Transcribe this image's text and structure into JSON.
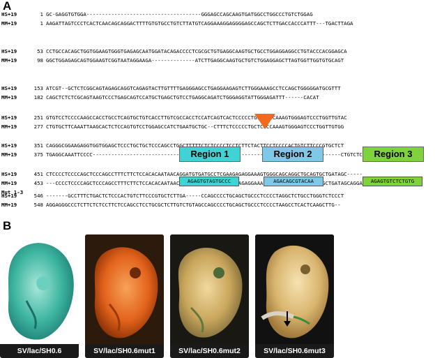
{
  "panel_a": {
    "label": "A",
    "rows": [
      {
        "species": "HS+19",
        "num": "1",
        "seq": "GC-GAGGTGTGGA-------------------------------------GGGAGCCAGCAAGTGATGGCCTGGCCCTGTCTGGAG"
      },
      {
        "species": "MM+19",
        "num": "1",
        "seq": "AAGATTAGTCCCTCACTCAACAGCAGGACTTTTGTGTGCCTGTCTTATGTCAGGAAAGGAGGGGAGCCAGCTCTTGACCACCCATTT---TGACTTAGA"
      },
      {
        "species": "HS+19",
        "num": "53",
        "seq": "CCTGCCACAGCTGGTGGAAGTGGGTGAGAGCAATGGATACAGACCCCTCGCGCTGTGAGGCAAGTGCTGCCTGGAGGAGGCCTGTACCCACGGAGCA"
      },
      {
        "species": "MM+19",
        "num": "98",
        "seq": "GGCTGGAGAGCAGTGGAAGTCGGTAATAGGAAGA--------------ATCTTGAGGCAAGTGCTGTCTGGAGGAGCTTAGTGGTTGGTGTGCAGT"
      },
      {
        "species": "HS+19",
        "num": "153",
        "seq": "ATCGT--GCTCTCGGCAGTAGAGCAGGTCAGAGTACTTGTTTTGAGGGAGCCTGAGGAAGAGTCTTGGGAAAGCCTCCAGCTGGGGGATGCGTTT"
      },
      {
        "species": "MM+19",
        "num": "182",
        "seq": "CAGCTCTCTCGCAGTAAGTCCCTGAGCAGTCCATGCTGAGCTGTCCTGAGGCAGATCTGGGAGGTATTGGGAGATTT------CACAT"
      },
      {
        "species": "HS+19",
        "num": "251",
        "seq": "GTGTCCTCCCCAAGCCACCTGCCTCAGTGCTGTCACCTTGTCGCCACCTCCATCAGTCACTCCCCCTGCTCGCCAAAGTGGGAGTCCCTGGTTGTAC"
      },
      {
        "species": "MM+19",
        "num": "277",
        "seq": "CTGTGCTTCAAATTAAGCACTCTCCAGTGTCCTGGAGCCATCTGAATGCTGC--CTTTCTCCCCCTGCTCGCCAAAGTGGGAGTCCCTGGTTGTGG"
      },
      {
        "species": "HS+19",
        "num": "351",
        "seq": "CAGGGCGGAAGAGGTGGTGGAGCTCCCTGCTGCTCCCAGCCTGGCTTTTTCTCTCCCCTCCTCTTCTACTTCCTCCCCACTGTCTTCCCGTGCTCT"
      },
      {
        "species": "MM+19",
        "num": "375",
        "seq": "TGAGGCAAATTCCCC-------------------------------------------AAG----------------------------------CTGTCTCC"
      },
      {
        "species": "HS+19",
        "num": "451",
        "seq": "CTCCCCTCCCCAGCTCCCAGCCTTTCTTCTCCACACAATAACAGGATGTGATGCCTCGAAGAGAGGAAAGTGGGCAGCAGGCTGCAGTGCTGATAGC-----"
      },
      {
        "species": "MM+19",
        "num": "453",
        "seq": "---CCCCTCCCCAGCTCCCAGCCTTTCTTCTCCACACAATAACAGGATGTGATGCCTCGAAGAGAGGAAAGTGGGCAGCAGACTGCAGTGCTGATAGCAGGA"
      },
      {
        "species": "Mut 1-3",
        "num": "",
        "seq": ""
      },
      {
        "species": "HS+19",
        "num": "546",
        "seq": "-------GCCTTTCTGACTCTCCCACTGTCTTCCCGTGCTCTTGA-----CCAGCCCCTGCAGCTGCCCTCCCCTAGGCTCTGCCTGGGTCTCCCT"
      },
      {
        "species": "MM+19",
        "num": "548",
        "seq": "AGGAGGGCCCTCTTCTCTCCTTCTCCAGCCTCCTGCGCTCTTGTCTGTAGCCAGCCCCTGCAGCTGCCCTCCCCTAAGCCTCACTCAAGCTTG--"
      }
    ],
    "regions": [
      {
        "label": "Region 1",
        "color": "#3fd3d6",
        "mutation": "AGAGTGTAGTGCCC"
      },
      {
        "label": "Region 2",
        "color": "#7ec9ea",
        "mutation": "AGACAGCGTACAA"
      },
      {
        "label": "Region 3",
        "color": "#7ed23a",
        "mutation": "AGAGTGTCTCTGTG"
      }
    ],
    "arrow_color": "#f26a1b"
  },
  "panel_b": {
    "label": "B",
    "images": [
      {
        "caption": "SV/lac/SH0.6",
        "bg": "#45b9a7"
      },
      {
        "caption": "SV/lac/SH0.6mut1",
        "bg": "#e2631b"
      },
      {
        "caption": "SV/lac/SH0.6mut2",
        "bg": "#c9a65c"
      },
      {
        "caption": "SV/lac/SH0.6mut3",
        "bg": "#d9b670"
      }
    ]
  }
}
